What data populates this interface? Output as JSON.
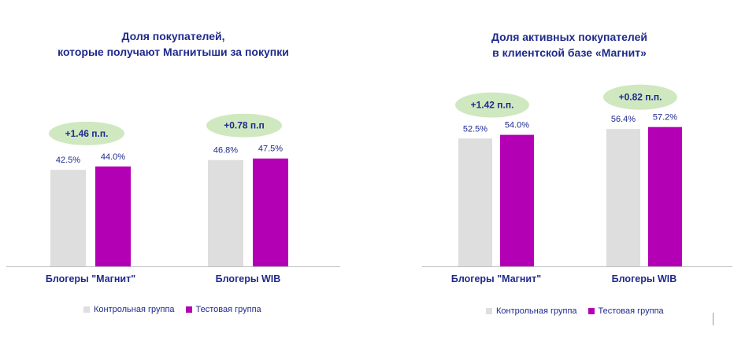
{
  "colors": {
    "control": "#dedede",
    "test": "#b400b4",
    "text": "#1f2a8c",
    "badge": "#cfe8c0",
    "axis": "#bfbfbf"
  },
  "chart_data": [
    {
      "type": "bar",
      "title": [
        "Доля покупателей,",
        "которые получают Магнитыши за покупки"
      ],
      "categories": [
        "Блогеры \"Магнит\"",
        "Блогеры WIB"
      ],
      "series": [
        {
          "name": "Контрольная группа",
          "values": [
            42.5,
            46.8
          ],
          "labels": [
            "42.5%",
            "46.8%"
          ]
        },
        {
          "name": "Тестовая группа",
          "values": [
            44.0,
            47.5
          ],
          "labels": [
            "44.0%",
            "47.5%"
          ]
        }
      ],
      "differences": [
        "+1.46 п.п.",
        "+0.78 п.п"
      ],
      "ylim": [
        0,
        100
      ],
      "legend": "bottom"
    },
    {
      "type": "bar",
      "title": [
        "Доля активных покупателей",
        "в клиентской базе «Магнит»"
      ],
      "categories": [
        "Блогеры \"Магнит\"",
        "Блогеры WIB"
      ],
      "series": [
        {
          "name": "Контрольная группа",
          "values": [
            52.5,
            56.4
          ],
          "labels": [
            "52.5%",
            "56.4%"
          ]
        },
        {
          "name": "Тестовая группа",
          "values": [
            54.0,
            57.2
          ],
          "labels": [
            "54.0%",
            "57.2%"
          ]
        }
      ],
      "differences": [
        "+1.42 п.п.",
        "+0.82 п.п."
      ],
      "ylim": [
        0,
        100
      ],
      "legend": "bottom"
    }
  ]
}
